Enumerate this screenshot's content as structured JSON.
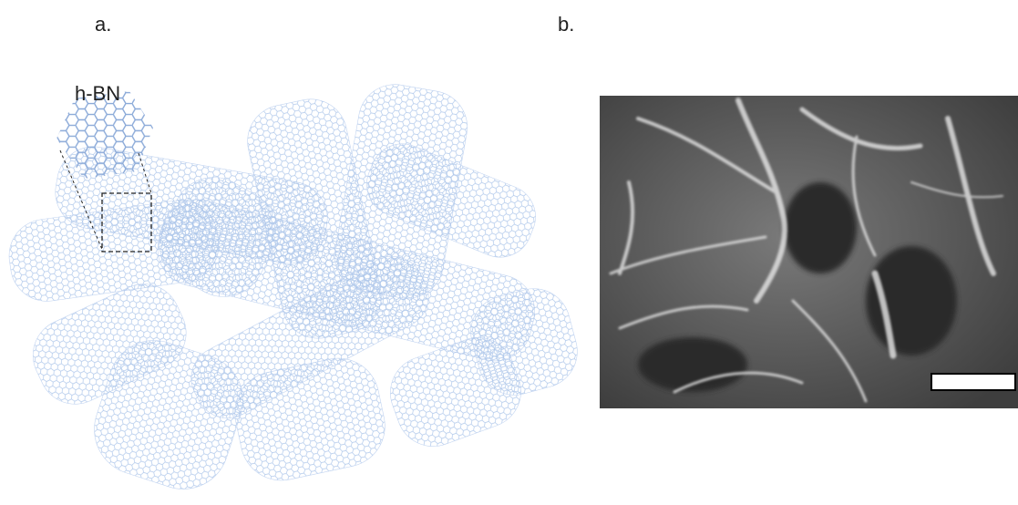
{
  "panels": [
    {
      "label": "a."
    },
    {
      "label": "b."
    }
  ],
  "inset": {
    "label": "h-BN"
  }
}
